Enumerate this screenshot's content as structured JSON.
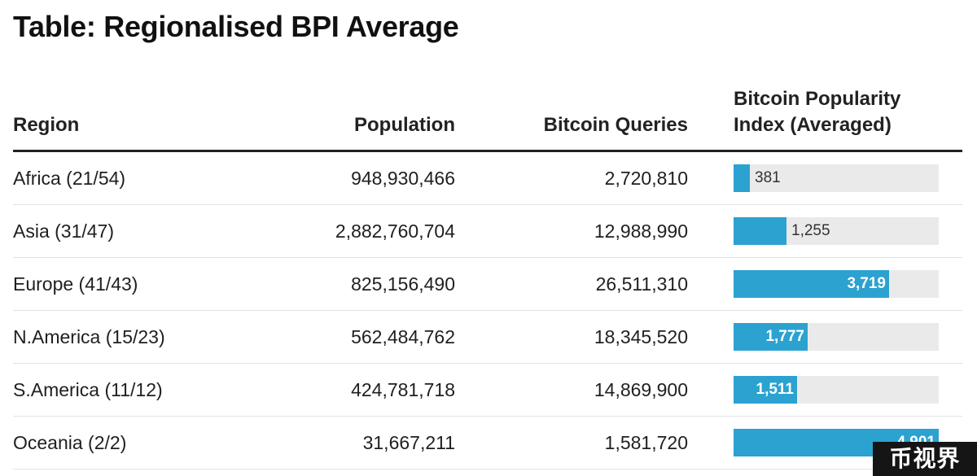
{
  "title": "Table: Regionalised BPI Average",
  "columns": {
    "region": "Region",
    "population": "Population",
    "queries": "Bitcoin Queries",
    "bpi_line1": "Bitcoin Popularity",
    "bpi_line2": "Index (Averaged)"
  },
  "rows": [
    {
      "region": "Africa (21/54)",
      "population": "948,930,466",
      "queries": "2,720,810",
      "bpi": 381,
      "bpi_label": "381"
    },
    {
      "region": "Asia (31/47)",
      "population": "2,882,760,704",
      "queries": "12,988,990",
      "bpi": 1255,
      "bpi_label": "1,255"
    },
    {
      "region": "Europe (41/43)",
      "population": "825,156,490",
      "queries": "26,511,310",
      "bpi": 3719,
      "bpi_label": "3,719"
    },
    {
      "region": "N.America (15/23)",
      "population": "562,484,762",
      "queries": "18,345,520",
      "bpi": 1777,
      "bpi_label": "1,777"
    },
    {
      "region": "S.America (11/12)",
      "population": "424,781,718",
      "queries": "14,869,900",
      "bpi": 1511,
      "bpi_label": "1,511"
    },
    {
      "region": "Oceania (2/2)",
      "population": "31,667,211",
      "queries": "1,581,720",
      "bpi": 4901,
      "bpi_label": "4,901"
    }
  ],
  "bpi_max": 4901,
  "colors": {
    "bar": "#2ba2d0",
    "track": "#eaeaea"
  },
  "watermark": "币视界"
}
